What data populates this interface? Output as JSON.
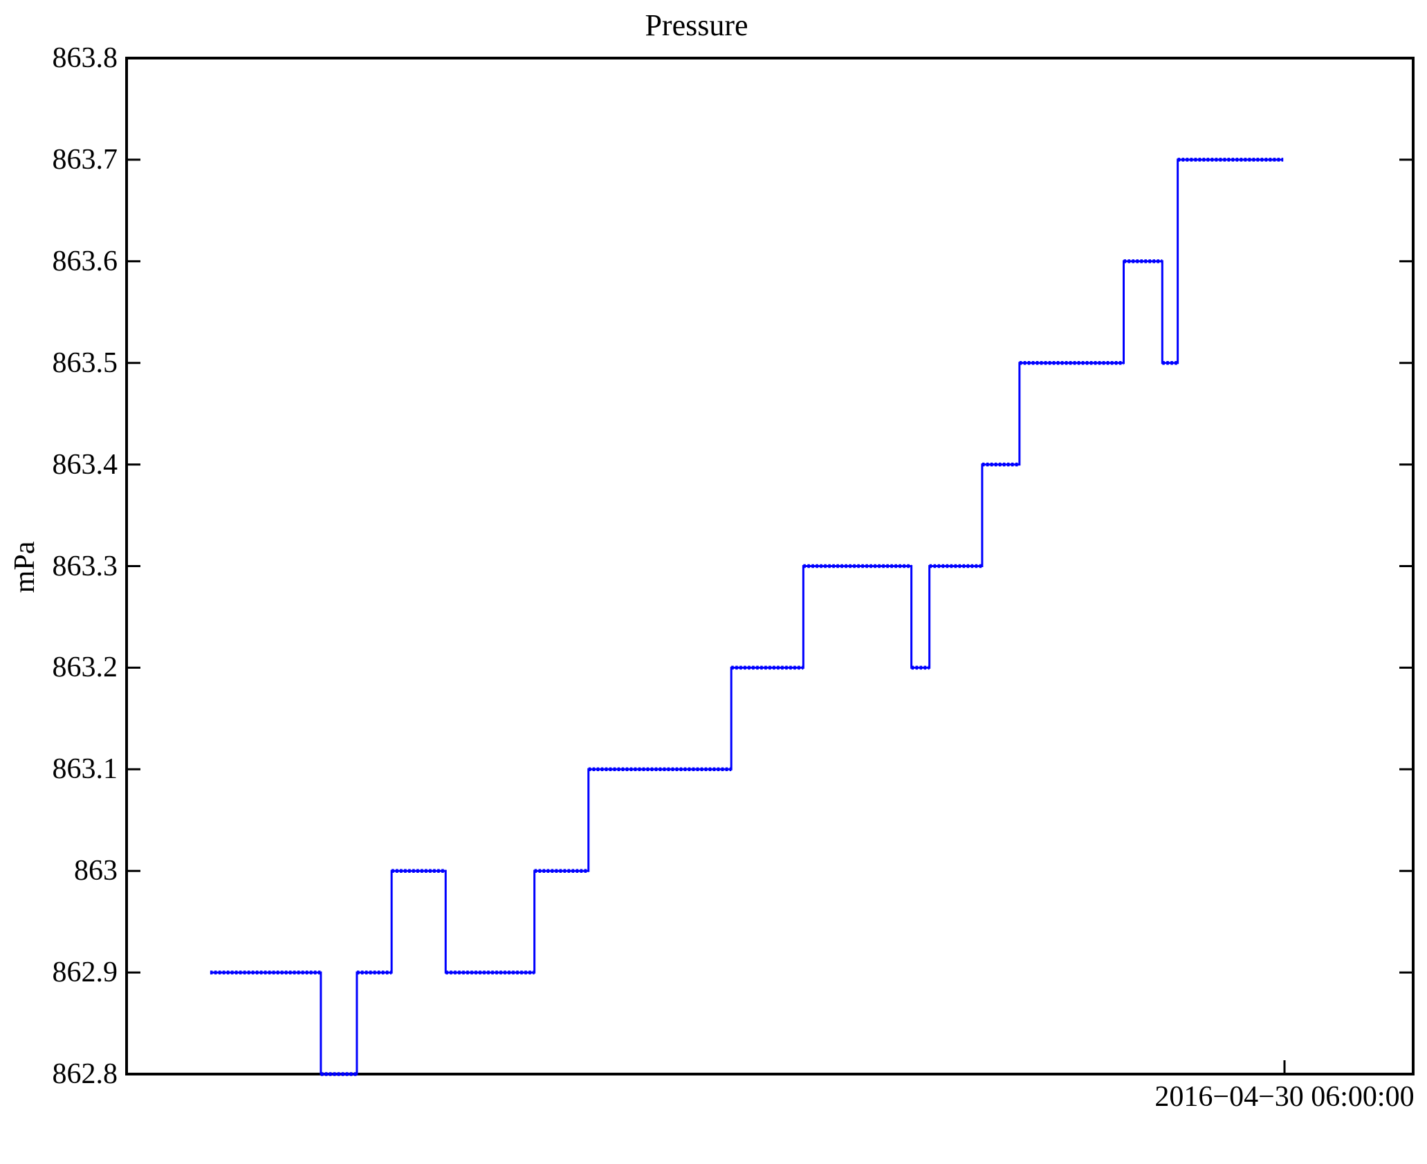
{
  "chart_data": {
    "type": "line",
    "subtype": "step",
    "title": "Pressure",
    "ylabel": "mPa",
    "xlabel": "",
    "ylim": [
      862.8,
      863.8
    ],
    "y_tick_labels": [
      "863.8",
      "863.7",
      "863.6",
      "863.5",
      "863.4",
      "863.3",
      "863.2",
      "863.1",
      "863",
      "862.9",
      "862.8"
    ],
    "x_axis": {
      "tick_label": "2016−04−30 06:00:00",
      "tick_fraction": 0.9
    },
    "grid": "off",
    "legend": "none",
    "series": [
      {
        "name": "Pressure",
        "step_segments": [
          {
            "x_start": 0.065,
            "x_end": 0.151,
            "value": 862.9
          },
          {
            "x_start": 0.151,
            "x_end": 0.179,
            "value": 862.8
          },
          {
            "x_start": 0.179,
            "x_end": 0.206,
            "value": 862.9
          },
          {
            "x_start": 0.206,
            "x_end": 0.248,
            "value": 863.0
          },
          {
            "x_start": 0.248,
            "x_end": 0.317,
            "value": 862.9
          },
          {
            "x_start": 0.317,
            "x_end": 0.359,
            "value": 863.0
          },
          {
            "x_start": 0.359,
            "x_end": 0.47,
            "value": 863.1
          },
          {
            "x_start": 0.47,
            "x_end": 0.526,
            "value": 863.2
          },
          {
            "x_start": 0.526,
            "x_end": 0.61,
            "value": 863.3
          },
          {
            "x_start": 0.61,
            "x_end": 0.624,
            "value": 863.2
          },
          {
            "x_start": 0.624,
            "x_end": 0.665,
            "value": 863.3
          },
          {
            "x_start": 0.665,
            "x_end": 0.694,
            "value": 863.4
          },
          {
            "x_start": 0.694,
            "x_end": 0.775,
            "value": 863.5
          },
          {
            "x_start": 0.775,
            "x_end": 0.805,
            "value": 863.6
          },
          {
            "x_start": 0.805,
            "x_end": 0.817,
            "value": 863.5
          },
          {
            "x_start": 0.817,
            "x_end": 0.899,
            "value": 863.7
          }
        ]
      }
    ],
    "colors": {
      "line": "#0000ff",
      "axis": "#000000",
      "background": "#ffffff"
    }
  }
}
